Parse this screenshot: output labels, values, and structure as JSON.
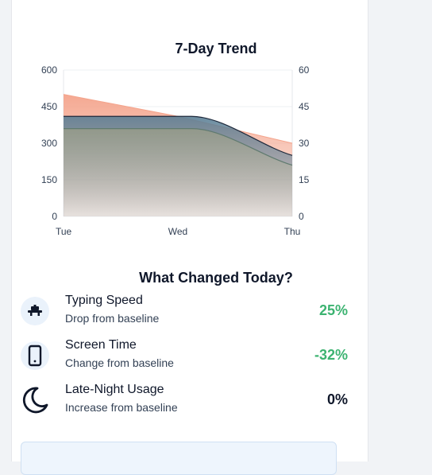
{
  "chart": {
    "title": "7-Day Trend",
    "chart_data": {
      "type": "area",
      "title": "7-Day Trend",
      "categories": [
        "Tue",
        "Wed",
        "Thu"
      ],
      "left_ylim": [
        0,
        600
      ],
      "right_ylim": [
        0,
        60
      ],
      "left_ticks": [
        "0",
        "150",
        "300",
        "450",
        "600"
      ],
      "right_ticks": [
        "0",
        "15",
        "30",
        "45",
        "60"
      ],
      "grid": true,
      "series": [
        {
          "axis": "left",
          "color": "#f4a48c",
          "values": [
            500,
            410,
            300
          ]
        },
        {
          "axis": "right",
          "color": "#5b7f95",
          "values": [
            41,
            41,
            25
          ]
        },
        {
          "axis": "left",
          "color": "#7a8f86",
          "values": [
            360,
            360,
            210
          ]
        }
      ]
    }
  },
  "changes": {
    "title": "What Changed Today?",
    "metrics": [
      {
        "name": "Typing Speed",
        "sub": "Drop from baseline",
        "value": "25%",
        "color": "#3cb371",
        "icon": "keyboard-icon"
      },
      {
        "name": "Screen Time",
        "sub": "Change from baseline",
        "value": "-32%",
        "color": "#3cb371",
        "icon": "phone-icon"
      },
      {
        "name": "Late-Night Usage",
        "sub": "Increase from baseline",
        "value": "0%",
        "color": "#0f172a",
        "icon": "moon-icon"
      }
    ]
  }
}
